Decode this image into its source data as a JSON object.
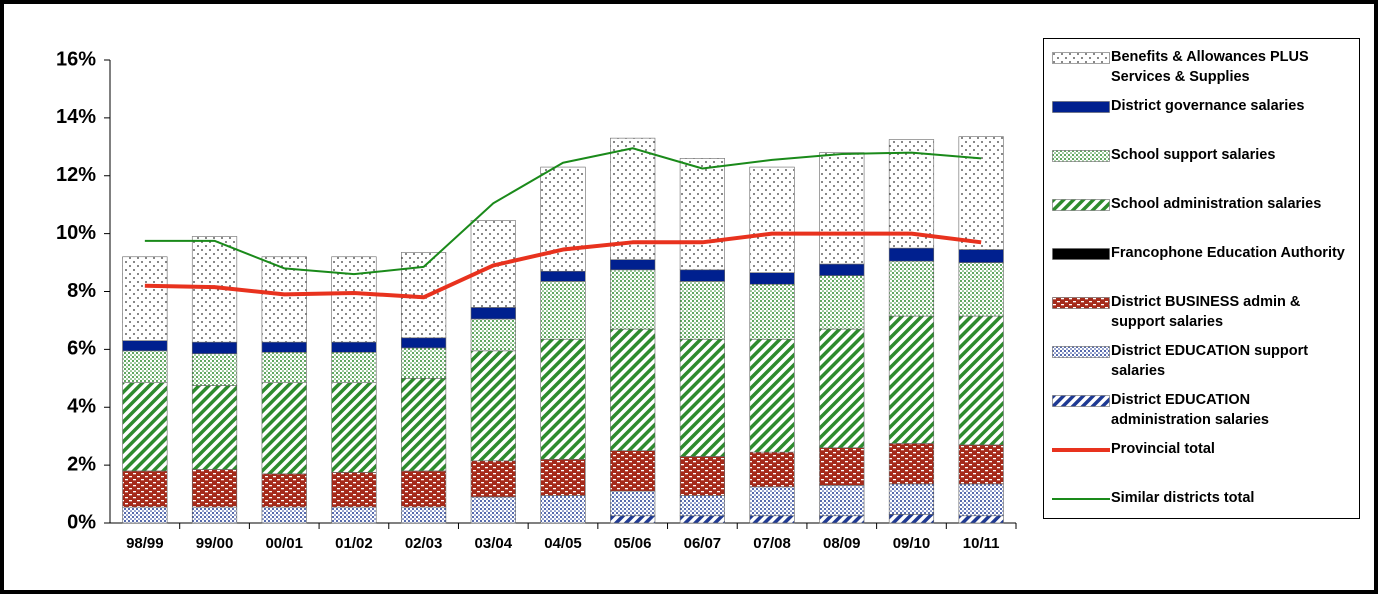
{
  "chart_data": {
    "type": "stacked-bar",
    "categories": [
      "98/99",
      "99/00",
      "00/01",
      "01/02",
      "02/03",
      "03/04",
      "04/05",
      "05/06",
      "06/07",
      "07/08",
      "08/09",
      "09/10",
      "10/11"
    ],
    "series": [
      {
        "name": "District EDUCATION administration salaries",
        "color": "#1f3a93",
        "pattern": "hatch",
        "values": [
          0,
          0,
          0,
          0,
          0,
          0,
          0,
          0.25,
          0.25,
          0.25,
          0.25,
          0.3,
          0.25
        ]
      },
      {
        "name": "District EDUCATION support salaries",
        "color": "#1f3a93",
        "pattern": "dots",
        "values": [
          0.55,
          0.55,
          0.55,
          0.55,
          0.55,
          0.9,
          0.95,
          0.85,
          0.7,
          1.0,
          1.05,
          1.05,
          1.1
        ]
      },
      {
        "name": "District BUSINESS admin & support salaries",
        "color": "#a52a1a",
        "pattern": "brick",
        "values": [
          1.25,
          1.3,
          1.15,
          1.2,
          1.25,
          1.25,
          1.25,
          1.4,
          1.35,
          1.2,
          1.3,
          1.4,
          1.35
        ]
      },
      {
        "name": "Francophone Education Authority",
        "color": "#000000",
        "pattern": "solid",
        "values": [
          0,
          0,
          0,
          0,
          0,
          0,
          0,
          0,
          0,
          0,
          0,
          0,
          0
        ]
      },
      {
        "name": "School administration salaries",
        "color": "#2e8b2e",
        "pattern": "hatch",
        "values": [
          3.05,
          2.9,
          3.15,
          3.1,
          3.2,
          3.8,
          4.15,
          4.2,
          4.05,
          3.9,
          4.1,
          4.4,
          4.45
        ]
      },
      {
        "name": "School support salaries",
        "color": "#2e8b2e",
        "pattern": "dots",
        "values": [
          1.1,
          1.1,
          1.05,
          1.05,
          1.05,
          1.1,
          2.0,
          2.05,
          2.0,
          1.9,
          1.85,
          1.9,
          1.85
        ]
      },
      {
        "name": "District governance salaries",
        "color": "#00208f",
        "pattern": "solid",
        "values": [
          0.35,
          0.4,
          0.35,
          0.35,
          0.35,
          0.4,
          0.35,
          0.35,
          0.4,
          0.4,
          0.4,
          0.45,
          0.45
        ]
      },
      {
        "name": "Benefits & Allowances PLUS Services & Supplies",
        "color": "#333333",
        "pattern": "sparse-dots",
        "values": [
          2.9,
          3.65,
          2.95,
          2.95,
          2.95,
          3.0,
          3.6,
          4.2,
          3.85,
          3.65,
          3.85,
          3.75,
          3.9
        ]
      }
    ],
    "lines": [
      {
        "name": "Provincial total",
        "color": "#e8321e",
        "width": 4,
        "values": [
          8.2,
          8.15,
          7.9,
          7.95,
          7.8,
          8.9,
          9.45,
          9.7,
          9.7,
          10.0,
          10.0,
          10.0,
          9.7
        ]
      },
      {
        "name": "Similar districts total",
        "color": "#1a8a1a",
        "width": 2,
        "values": [
          9.75,
          9.75,
          8.8,
          8.6,
          8.85,
          11.05,
          12.45,
          12.95,
          12.25,
          12.55,
          12.75,
          12.8,
          12.6
        ]
      }
    ],
    "ylim": [
      0,
      16
    ],
    "yticks": [
      {
        "value": 0,
        "label": "0%"
      },
      {
        "value": 2,
        "label": "2%"
      },
      {
        "value": 4,
        "label": "4%"
      },
      {
        "value": 6,
        "label": "6%"
      },
      {
        "value": 8,
        "label": "8%"
      },
      {
        "value": 10,
        "label": "10%"
      },
      {
        "value": 12,
        "label": "12%"
      },
      {
        "value": 14,
        "label": "14%"
      },
      {
        "value": 16,
        "label": "16%"
      }
    ],
    "legend": "right"
  }
}
